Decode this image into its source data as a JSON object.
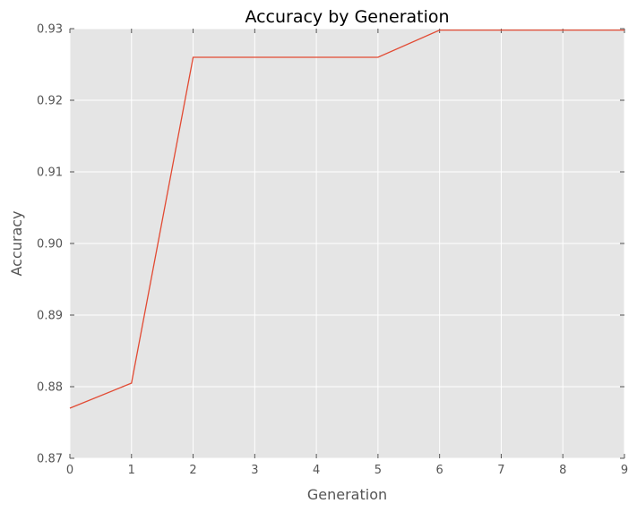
{
  "chart_data": {
    "type": "line",
    "title": "Accuracy by Generation",
    "xlabel": "Generation",
    "ylabel": "Accuracy",
    "xlim": [
      0,
      9
    ],
    "ylim": [
      0.87,
      0.93
    ],
    "x_ticks": [
      "0",
      "1",
      "2",
      "3",
      "4",
      "5",
      "6",
      "7",
      "8",
      "9"
    ],
    "y_ticks": [
      "0.87",
      "0.88",
      "0.89",
      "0.90",
      "0.91",
      "0.92",
      "0.93"
    ],
    "grid": true,
    "series": [
      {
        "color": "#E24A33",
        "x": [
          0,
          1,
          2,
          3,
          4,
          5,
          6,
          7,
          8,
          9
        ],
        "y": [
          0.877,
          0.8805,
          0.926,
          0.926,
          0.926,
          0.926,
          0.9298,
          0.9298,
          0.9298,
          0.9298
        ]
      }
    ],
    "background": "#E5E5E5"
  }
}
